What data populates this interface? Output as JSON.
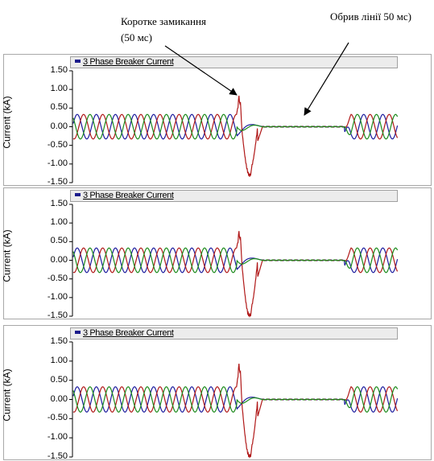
{
  "annotations": {
    "short_circuit": [
      "Коротке замикання",
      "(50 мс)"
    ],
    "open_circuit": "Обрив лінії 50 мс)"
  },
  "chart_data": [
    {
      "type": "line",
      "title": "3 Phase Breaker Current",
      "ylabel": "Current (kA)",
      "xlabel": "",
      "ylim": [
        -1.5,
        1.5
      ],
      "yticks": [
        "1.50",
        "1.00",
        "0.50",
        "0.00",
        "-0.50",
        "-1.00",
        "-1.50"
      ],
      "series_colors": [
        "#1c1c9e",
        "#b01818",
        "#1a8a1a"
      ],
      "amplitude_kA": 0.33,
      "cycles_before_fault": 8.6,
      "fault_peak_kA": 0.75,
      "fault_trough_kA": -1.3,
      "breaker_open_level_kA": 0.0
    },
    {
      "type": "line",
      "title": "3 Phase Breaker Current",
      "ylabel": "Current (kA)",
      "xlabel": "",
      "ylim": [
        -1.5,
        1.5
      ],
      "yticks": [
        "1.50",
        "1.00",
        "0.50",
        "0.00",
        "-0.50",
        "-1.00",
        "-1.50"
      ],
      "series_colors": [
        "#1c1c9e",
        "#b01818",
        "#1a8a1a"
      ],
      "amplitude_kA": 0.33,
      "cycles_before_fault": 8.6,
      "fault_peak_kA": 0.7,
      "fault_trough_kA": -1.5,
      "breaker_open_level_kA": 0.0
    },
    {
      "type": "line",
      "title": "3 Phase Breaker Current",
      "ylabel": "Current (kA)",
      "xlabel": "",
      "ylim": [
        -1.5,
        1.5
      ],
      "yticks": [
        "1.50",
        "1.00",
        "0.50",
        "0.00",
        "-0.50",
        "-1.00",
        "-1.50"
      ],
      "series_colors": [
        "#1c1c9e",
        "#b01818",
        "#1a8a1a"
      ],
      "amplitude_kA": 0.33,
      "cycles_before_fault": 8.6,
      "fault_peak_kA": 0.85,
      "fault_trough_kA": -1.5,
      "breaker_open_level_kA": 0.0
    }
  ]
}
